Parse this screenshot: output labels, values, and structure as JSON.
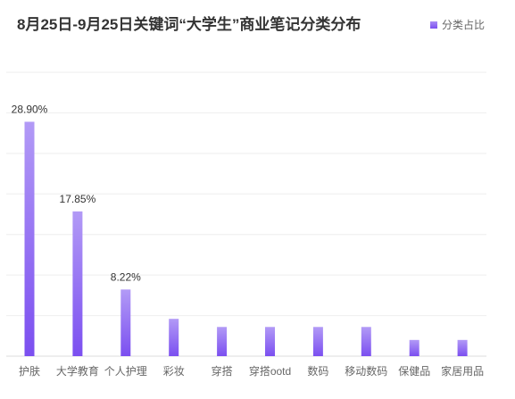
{
  "chart_data": {
    "type": "bar",
    "title": "8月25日-9月25日关键词“大学生”商业笔记分类分布",
    "legend": [
      "分类占比"
    ],
    "legend_position": "top-right",
    "categories": [
      "护肤",
      "大学教育",
      "个人护理",
      "彩妆",
      "穿搭",
      "穿搭ootd",
      "数码",
      "移动数码",
      "保健品",
      "家居用品"
    ],
    "series": [
      {
        "name": "分类占比",
        "values": [
          28.9,
          17.85,
          8.22,
          4.6,
          3.6,
          3.6,
          3.6,
          3.6,
          2.0,
          2.0
        ]
      }
    ],
    "data_labels": [
      "28.90%",
      "17.85%",
      "8.22%",
      "",
      "",
      "",
      "",
      "",
      "",
      ""
    ],
    "ylim": [
      0,
      35
    ],
    "grid": true,
    "bar_color": "#7b4ff0",
    "bar_color_light": "#b29af6"
  }
}
